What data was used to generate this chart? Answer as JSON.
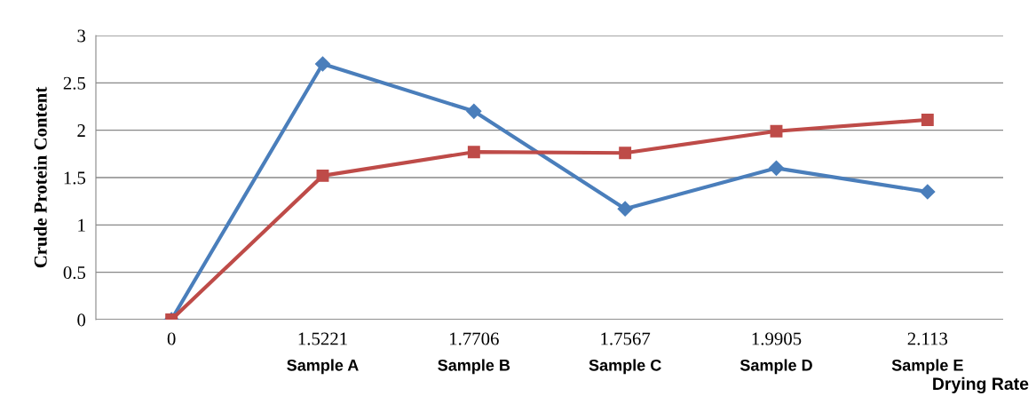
{
  "chart_data": {
    "type": "line",
    "ylabel": "Crude Protein Content",
    "xlabel": "Drying Rate",
    "categories": [
      "0",
      "1.5221",
      "1.7706",
      "1.7567",
      "1.9905",
      "2.113"
    ],
    "series": [
      {
        "color": "#4a7ebb",
        "values": [
          0,
          2.7,
          2.2,
          1.17,
          1.6,
          1.35
        ],
        "marker": "diamond"
      },
      {
        "color": "#be4b48",
        "values": [
          0,
          1.52,
          1.77,
          1.76,
          1.99,
          2.11
        ],
        "marker": "square"
      }
    ],
    "ylim": [
      0,
      3
    ],
    "yticks": [
      0,
      0.5,
      1,
      1.5,
      2,
      2.5,
      3
    ],
    "grid": "y",
    "legend": false,
    "line_style": "solid",
    "annotations": [
      "Sample A",
      "Sample B",
      "Sample C",
      "Sample D",
      "Sample E"
    ]
  }
}
